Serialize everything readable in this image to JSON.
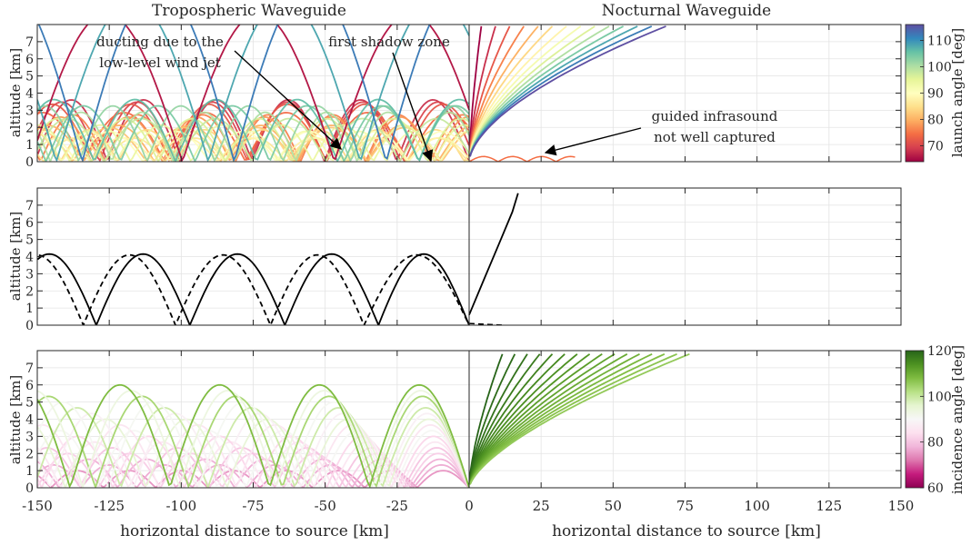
{
  "chart_data": [
    {
      "type": "line",
      "panel": "top",
      "titles": [
        "Tropospheric Waveguide",
        "Nocturnal Waveguide"
      ],
      "ylabel": "altitude [km]",
      "x_ticks": [
        -150,
        -125,
        -100,
        -75,
        -50,
        -25,
        0,
        25,
        50,
        75,
        100,
        125,
        150
      ],
      "y_ticks": [
        0,
        1,
        2,
        3,
        4,
        5,
        6,
        7
      ],
      "xlim": [
        -150,
        150
      ],
      "ylim": [
        0,
        8
      ],
      "grid": true,
      "colorbar": {
        "label": "launch angle [deg]",
        "ticks": [
          70,
          80,
          90,
          100,
          110
        ],
        "range": [
          64,
          116
        ],
        "colors": [
          "#9e0142",
          "#d53e4f",
          "#f46d43",
          "#fdae61",
          "#fee08b",
          "#ffffbf",
          "#e6f598",
          "#abdda4",
          "#66c2a5",
          "#3288bd",
          "#5e4fa2"
        ]
      },
      "tropo_ducted_arches": {
        "ducting_height_km": 4.3,
        "skip_distance_km": 33,
        "angles_deg": [
          68,
          70,
          72,
          74,
          76,
          78,
          80,
          82,
          84,
          86,
          88,
          90,
          92,
          94,
          96,
          98,
          100,
          102,
          104,
          106
        ]
      },
      "tropo_escaping_rays": {
        "angles_deg": [
          66,
          108,
          112
        ]
      },
      "noct_escaping_rays": {
        "angles_deg": [
          64,
          68,
          72,
          76,
          80,
          84,
          88,
          92,
          96,
          100,
          104,
          108,
          112,
          116
        ]
      },
      "annotations": [
        {
          "text_lines": [
            "ducting due to the",
            "low-level wind jet"
          ],
          "arrow_to": [
            -47,
            0.6
          ]
        },
        {
          "text_lines": [
            "first shadow zone"
          ],
          "arrow_to": [
            -15,
            0
          ]
        },
        {
          "text_lines": [
            "guided infrasound",
            "not well captured"
          ],
          "arrow_to": [
            23,
            0.5
          ]
        }
      ]
    },
    {
      "type": "line",
      "panel": "middle",
      "ylabel": "altitude [km]",
      "y_ticks": [
        0,
        1,
        2,
        3,
        4,
        5,
        6,
        7
      ],
      "xlim": [
        -150,
        150
      ],
      "ylim": [
        0,
        8
      ],
      "grid": true,
      "series": [
        {
          "style": "solid",
          "color": "#000000",
          "bounce_x_km": [
            -129.5,
            -97,
            -64,
            -31.5
          ],
          "arch_height_km": 4.15
        },
        {
          "style": "dashed",
          "color": "#000000",
          "bounce_x_km": [
            -134,
            -102,
            -69,
            -36.5
          ],
          "arch_height_km": 4.1
        }
      ],
      "escaping_ray": {
        "x_km": [
          0,
          5,
          10,
          15,
          17
        ],
        "y_km": [
          0.6,
          2.6,
          4.6,
          6.6,
          7.7
        ]
      }
    },
    {
      "type": "line",
      "panel": "bottom",
      "ylabel": "altitude [km]",
      "xlabel": "horizontal distance to source [km]",
      "x_ticks": [
        -150,
        -125,
        -100,
        -75,
        -50,
        -25,
        0,
        25,
        50,
        75,
        100,
        125,
        150
      ],
      "y_ticks": [
        0,
        1,
        2,
        3,
        4,
        5,
        6,
        7
      ],
      "xlim": [
        -150,
        150
      ],
      "ylim": [
        0,
        8
      ],
      "grid": true,
      "colorbar": {
        "label": "incidence angle [deg]",
        "ticks": [
          60,
          80,
          100,
          120
        ],
        "range": [
          60,
          120
        ],
        "colors": [
          "#8e0152",
          "#c51b7d",
          "#de77ae",
          "#f1b6da",
          "#fde0ef",
          "#f7f7f7",
          "#e6f5d0",
          "#b8e186",
          "#7fbc41",
          "#4d9221",
          "#276419"
        ]
      },
      "tropo_arches": {
        "ducting_height_km": 4.3,
        "skip_distance_km": 33,
        "count": 16
      },
      "noct_rays": {
        "count": 16
      }
    }
  ]
}
